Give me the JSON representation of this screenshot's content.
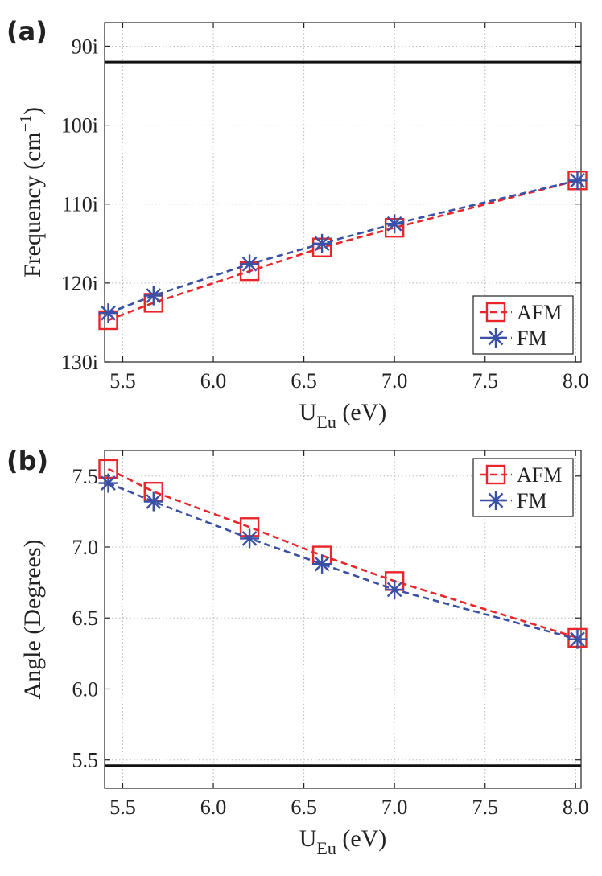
{
  "chart_data": [
    {
      "type": "line",
      "panel_label": "(a)",
      "xlabel_main": "U",
      "xlabel_sub": "Eu",
      "xlabel_unit": " (eV)",
      "ylabel": "Frequency (cm",
      "ylabel_sup": "−1",
      "ylabel_close": ")",
      "xlim": [
        5.4,
        8.03
      ],
      "ylim": [
        87,
        130
      ],
      "y_inverted": true,
      "x_ticks": [
        5.5,
        6.0,
        6.5,
        7.0,
        7.5,
        8.0
      ],
      "x_tick_labels": [
        "5.5",
        "6.0",
        "6.5",
        "7.0",
        "7.5",
        "8.0"
      ],
      "y_ticks": [
        90,
        100,
        110,
        120,
        130
      ],
      "y_tick_labels": [
        "90i",
        "100i",
        "110i",
        "120i",
        "130i"
      ],
      "grid": true,
      "reference_line_y": 92,
      "legend_position": "bottom-right",
      "series": [
        {
          "name": "AFM",
          "color": "#e8262a",
          "marker": "square",
          "x": [
            5.42,
            5.67,
            6.2,
            6.6,
            7.0,
            8.01
          ],
          "y": [
            124.7,
            122.5,
            118.5,
            115.5,
            113.0,
            107.0
          ]
        },
        {
          "name": "FM",
          "color": "#3a4fa6",
          "marker": "asterisk",
          "x": [
            5.42,
            5.67,
            6.2,
            6.6,
            7.0,
            8.01
          ],
          "y": [
            123.8,
            121.6,
            117.6,
            115.0,
            112.5,
            107.0
          ]
        }
      ]
    },
    {
      "type": "line",
      "panel_label": "(b)",
      "xlabel_main": "U",
      "xlabel_sub": "Eu",
      "xlabel_unit": " (eV)",
      "ylabel": "Angle (Degrees)",
      "xlim": [
        5.4,
        8.03
      ],
      "ylim": [
        5.3,
        7.68
      ],
      "y_inverted": false,
      "x_ticks": [
        5.5,
        6.0,
        6.5,
        7.0,
        7.5,
        8.0
      ],
      "x_tick_labels": [
        "5.5",
        "6.0",
        "6.5",
        "7.0",
        "7.5",
        "8.0"
      ],
      "y_ticks": [
        5.5,
        6.0,
        6.5,
        7.0,
        7.5
      ],
      "y_tick_labels": [
        "5.5",
        "6.0",
        "6.5",
        "7.0",
        "7.5"
      ],
      "grid": true,
      "reference_line_y": 5.46,
      "legend_position": "top-right",
      "series": [
        {
          "name": "AFM",
          "color": "#e8262a",
          "marker": "square",
          "x": [
            5.42,
            5.67,
            6.2,
            6.6,
            7.0,
            8.01
          ],
          "y": [
            7.55,
            7.39,
            7.14,
            6.94,
            6.76,
            6.36
          ]
        },
        {
          "name": "FM",
          "color": "#3a4fa6",
          "marker": "asterisk",
          "x": [
            5.42,
            5.67,
            6.2,
            6.6,
            7.0,
            8.01
          ],
          "y": [
            7.45,
            7.32,
            7.06,
            6.88,
            6.7,
            6.35
          ]
        }
      ]
    }
  ]
}
